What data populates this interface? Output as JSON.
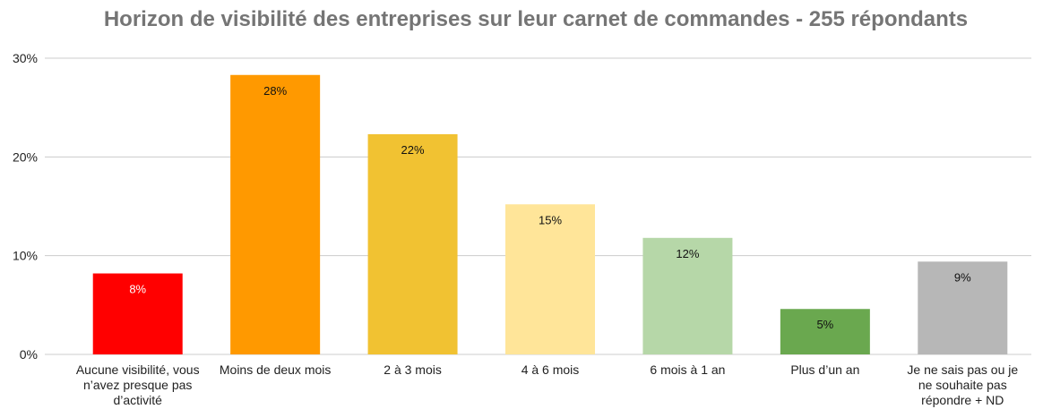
{
  "chart_data": {
    "type": "bar",
    "title": "Horizon de visibilité des entreprises sur leur carnet de commandes - 255 répondants",
    "categories": [
      "Aucune visibilité, vous n’avez presque pas d’activité",
      "Moins de deux mois",
      "2 à 3 mois",
      "4 à 6 mois",
      "6 mois à 1 an",
      "Plus d’un an",
      "Je ne sais pas ou je ne souhaite pas répondre + ND"
    ],
    "values": [
      8.2,
      28.3,
      22.3,
      15.2,
      11.8,
      4.6,
      9.4
    ],
    "value_labels": [
      "8%",
      "28%",
      "22%",
      "15%",
      "12%",
      "5%",
      "9%"
    ],
    "colors": [
      "#ff0000",
      "#ff9900",
      "#f1c232",
      "#ffe599",
      "#b6d7a8",
      "#6aa84f",
      "#b7b7b7"
    ],
    "ylim": [
      0,
      30
    ],
    "yticks": [
      {
        "value": 0,
        "label": "0%"
      },
      {
        "value": 10,
        "label": "10%"
      },
      {
        "value": 20,
        "label": "20%"
      },
      {
        "value": 30,
        "label": "30%"
      }
    ],
    "grid": true
  }
}
